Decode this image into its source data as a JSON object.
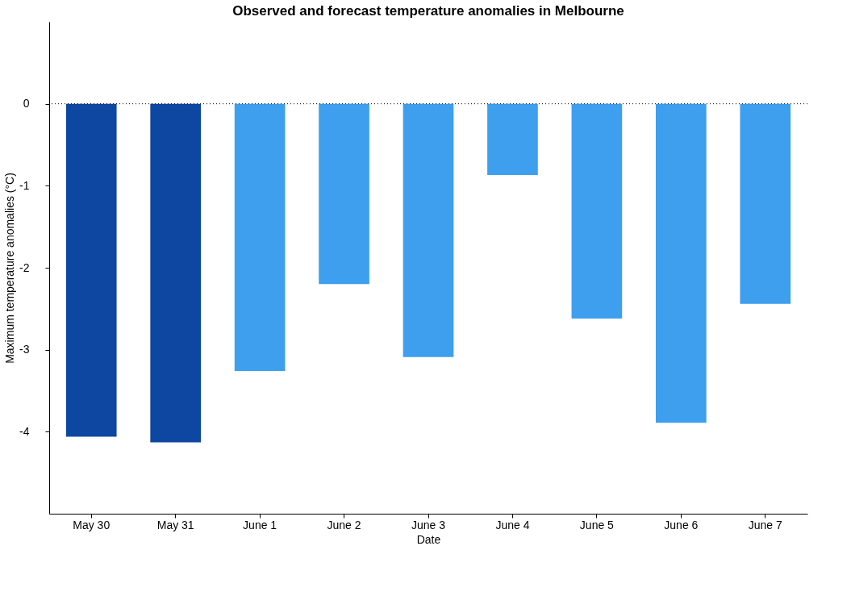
{
  "chart_data": {
    "type": "bar",
    "title": "Observed and forecast temperature anomalies in Melbourne",
    "xlabel": "Date",
    "ylabel": "Maximum temperature anomalies (°C)",
    "categories": [
      "May 30",
      "May 31",
      "June 1",
      "June 2",
      "June 3",
      "June 4",
      "June 5",
      "June 6",
      "June 7"
    ],
    "values": [
      -4.06,
      -4.13,
      -3.26,
      -2.2,
      -3.09,
      -0.87,
      -2.62,
      -3.89,
      -2.44
    ],
    "colors": [
      "#0d47a1",
      "#0d47a1",
      "#3d9fee",
      "#3d9fee",
      "#3d9fee",
      "#3d9fee",
      "#3d9fee",
      "#3d9fee",
      "#3d9fee"
    ],
    "ylim": [
      -5,
      1
    ],
    "yticks": [
      -4,
      -3,
      -2,
      -1,
      0
    ],
    "ref_lines": [
      {
        "axis": "y",
        "value": 0,
        "line_style": "dotted",
        "color": "#000000"
      }
    ],
    "grid": false
  }
}
